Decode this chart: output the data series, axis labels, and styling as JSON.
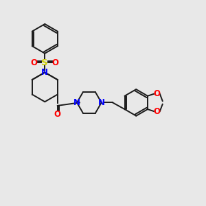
{
  "bg_color": "#e8e8e8",
  "bond_color": "#1a1a1a",
  "N_color": "#0000ff",
  "O_color": "#ff0000",
  "S_color": "#cccc00",
  "fig_width": 3.0,
  "fig_height": 3.0,
  "dpi": 100,
  "lw": 1.4,
  "fs": 8.5,
  "xlim": [
    0,
    10
  ],
  "ylim": [
    0,
    10
  ]
}
